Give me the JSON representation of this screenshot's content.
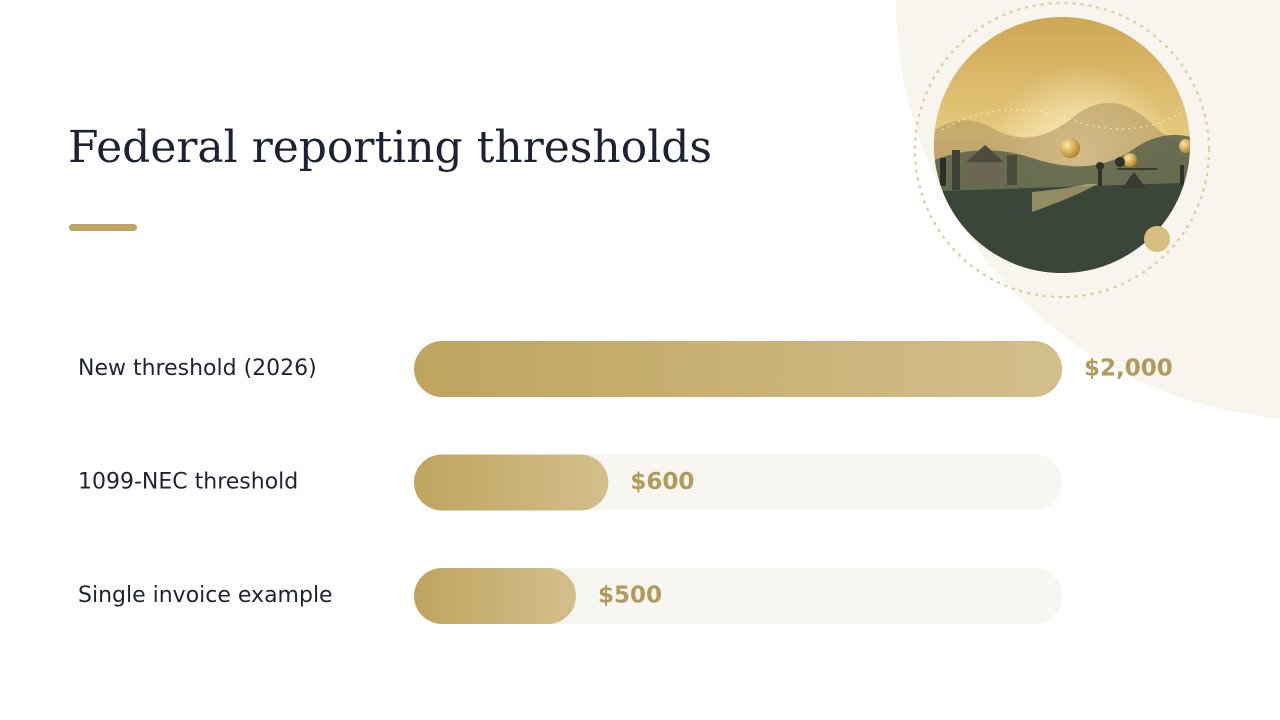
{
  "page": {
    "title": "Federal reporting thresholds"
  },
  "colors": {
    "accent": "#bfa45f",
    "accent_light": "#d3bf8b",
    "track": "#f8f6f1",
    "label_text": "#1f2433",
    "value_text": "#b29a5a",
    "background_blob": "#f8f5ee"
  },
  "chart_data": {
    "type": "bar",
    "orientation": "horizontal",
    "categories": [
      "New threshold (2026)",
      "1099-NEC threshold",
      "Single invoice example"
    ],
    "values": [
      2000,
      600,
      500
    ],
    "value_labels": [
      "$2,000",
      "$600",
      "$500"
    ],
    "title": "Federal reporting thresholds",
    "xlabel": "",
    "ylabel": "",
    "xlim": [
      0,
      2000
    ],
    "grid": false,
    "legend": "none"
  }
}
